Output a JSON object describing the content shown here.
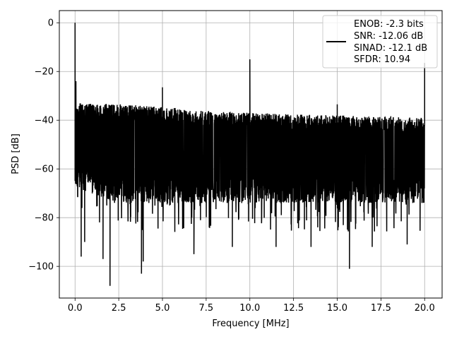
{
  "chart_data": {
    "type": "line",
    "xlabel": "Frequency [MHz]",
    "ylabel": "PSD [dB]",
    "xlim": [
      -0.9,
      21.0
    ],
    "ylim": [
      -113,
      5
    ],
    "x_ticks": [
      0.0,
      2.5,
      5.0,
      7.5,
      10.0,
      12.5,
      15.0,
      17.5,
      20.0
    ],
    "x_tick_labels": [
      "0.0",
      "2.5",
      "5.0",
      "7.5",
      "10.0",
      "12.5",
      "15.0",
      "17.5",
      "20.0"
    ],
    "y_ticks": [
      0,
      -20,
      -40,
      -60,
      -80,
      -100
    ],
    "y_tick_labels": [
      "0",
      "−20",
      "−40",
      "−60",
      "−80",
      "−100"
    ],
    "grid": true,
    "legend_position": "top-right",
    "legend": [
      "ENOB: -2.3 bits",
      "SNR: -12.06 dB",
      "SINAD: -12.1 dB",
      "SFDR: 10.94"
    ],
    "series": [
      {
        "color": "#000000",
        "x_range": [
          0,
          20
        ],
        "noise_band": {
          "upper_envelope": [
            [
              0.1,
              -33
            ],
            [
              2.5,
              -33.5
            ],
            [
              5.0,
              -34.5
            ],
            [
              7.5,
              -36
            ],
            [
              10.0,
              -37
            ],
            [
              12.5,
              -37.5
            ],
            [
              15.0,
              -38
            ],
            [
              17.5,
              -38.5
            ],
            [
              20.0,
              -39
            ]
          ],
          "lower_envelope": [
            [
              0.1,
              -68
            ],
            [
              2.5,
              -74
            ],
            [
              5.0,
              -74
            ],
            [
              7.5,
              -74
            ],
            [
              10.0,
              -74
            ],
            [
              12.5,
              -74
            ],
            [
              15.0,
              -74
            ],
            [
              17.5,
              -74
            ],
            [
              20.0,
              -74
            ]
          ]
        },
        "peaks": [
          {
            "x": 0.0,
            "y": 0.0
          },
          {
            "x": 0.05,
            "y": -24
          },
          {
            "x": 5.0,
            "y": -26.5
          },
          {
            "x": 10.0,
            "y": -15
          },
          {
            "x": 15.0,
            "y": -33.5
          },
          {
            "x": 20.0,
            "y": -16.5
          }
        ],
        "dips": [
          {
            "x": 0.35,
            "y": -96
          },
          {
            "x": 0.55,
            "y": -90
          },
          {
            "x": 1.6,
            "y": -97
          },
          {
            "x": 2.0,
            "y": -108
          },
          {
            "x": 3.8,
            "y": -103
          },
          {
            "x": 3.9,
            "y": -98
          },
          {
            "x": 6.8,
            "y": -95
          },
          {
            "x": 15.7,
            "y": -101
          },
          {
            "x": 9.0,
            "y": -92
          },
          {
            "x": 11.5,
            "y": -92
          },
          {
            "x": 13.5,
            "y": -92
          },
          {
            "x": 17.0,
            "y": -92
          },
          {
            "x": 19.0,
            "y": -91
          }
        ]
      }
    ]
  }
}
